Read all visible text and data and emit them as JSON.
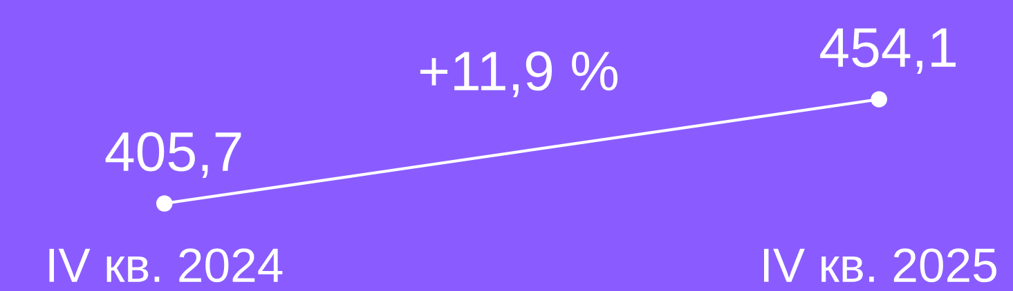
{
  "chart_data": {
    "type": "line",
    "categories": [
      "IV кв. 2024",
      "IV кв. 2025"
    ],
    "series": [
      {
        "color": "#ffffff",
        "values": [
          405.7,
          454.1
        ],
        "value_labels": [
          "405,7",
          "454,1"
        ]
      }
    ],
    "annotations": [
      "+11,9 %"
    ],
    "marker": "circle",
    "line_style": "solid"
  }
}
